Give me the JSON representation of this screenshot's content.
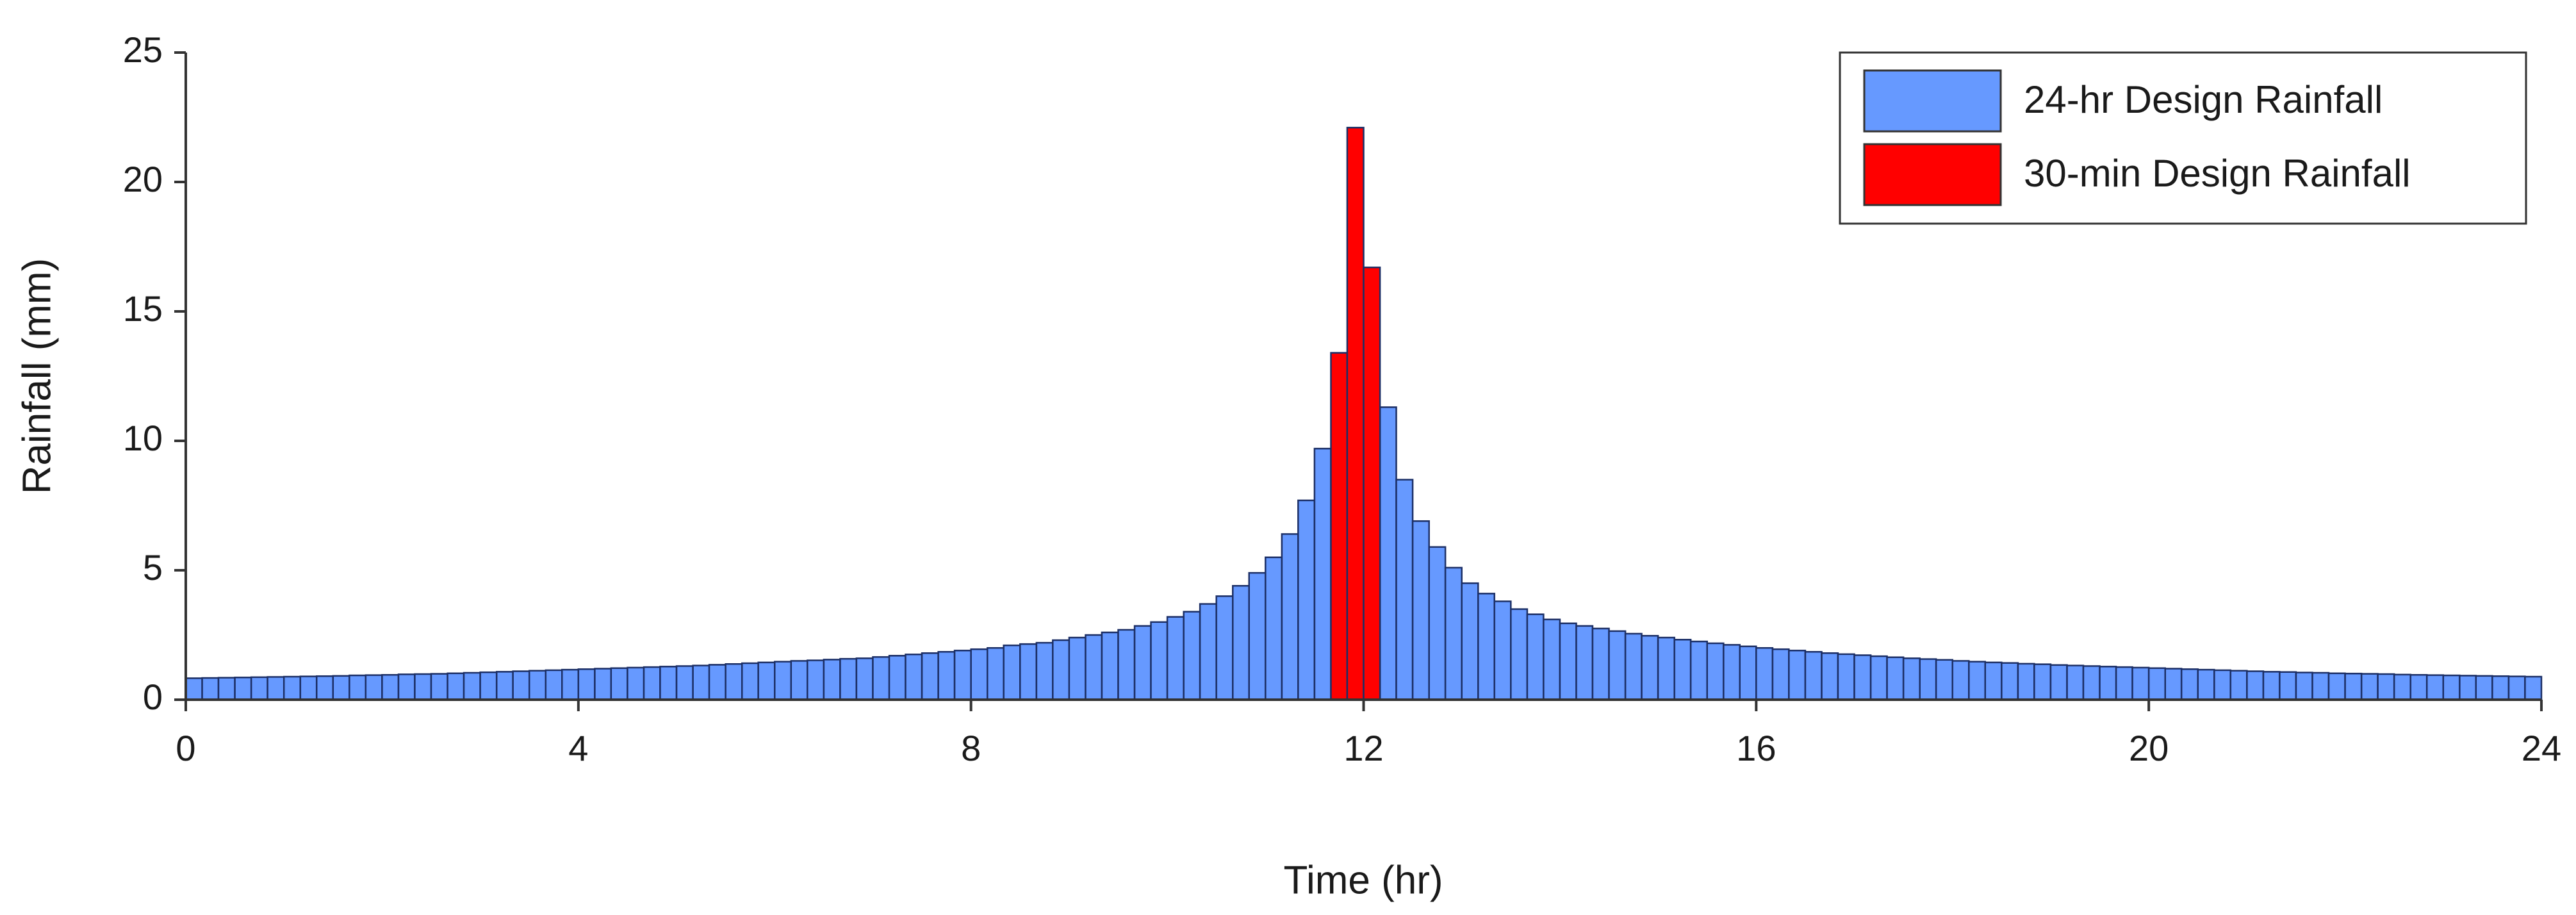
{
  "chart_data": {
    "type": "histogram",
    "xlabel": "Time (hr)",
    "ylabel": "Rainfall (mm)",
    "xlim": [
      0,
      24
    ],
    "ylim": [
      0,
      25
    ],
    "xticks": [
      0,
      4,
      8,
      12,
      16,
      20,
      24
    ],
    "yticks": [
      0,
      5,
      10,
      15,
      20,
      25
    ],
    "legend": "upper right",
    "bins": [
      0,
      0.167,
      0.333,
      0.5,
      0.667,
      0.833,
      1,
      1.167,
      1.333,
      1.5,
      1.667,
      1.833,
      2,
      2.167,
      2.333,
      2.5,
      2.667,
      2.833,
      3,
      3.167,
      3.333,
      3.5,
      3.667,
      3.833,
      4,
      4.167,
      4.333,
      4.5,
      4.667,
      4.833,
      5,
      5.167,
      5.333,
      5.5,
      5.667,
      5.833,
      6,
      6.167,
      6.333,
      6.5,
      6.667,
      6.833,
      7,
      7.167,
      7.333,
      7.5,
      7.667,
      7.833,
      8,
      8.167,
      8.333,
      8.5,
      8.667,
      8.833,
      9,
      9.167,
      9.333,
      9.5,
      9.667,
      9.833,
      10,
      10.167,
      10.333,
      10.5,
      10.667,
      10.833,
      11,
      11.167,
      11.333,
      11.5,
      11.667,
      11.833,
      12,
      12.167,
      12.333,
      12.5,
      12.667,
      12.833,
      13,
      13.167,
      13.333,
      13.5,
      13.667,
      13.833,
      14,
      14.167,
      14.333,
      14.5,
      14.667,
      14.833,
      15,
      15.167,
      15.333,
      15.5,
      15.667,
      15.833,
      16,
      16.167,
      16.333,
      16.5,
      16.667,
      16.833,
      17,
      17.167,
      17.333,
      17.5,
      17.667,
      17.833,
      18,
      18.167,
      18.333,
      18.5,
      18.667,
      18.833,
      19,
      19.167,
      19.333,
      19.5,
      19.667,
      19.833,
      20,
      20.167,
      20.333,
      20.5,
      20.667,
      20.833,
      21,
      21.167,
      21.333,
      21.5,
      21.667,
      21.833,
      22,
      22.167,
      22.333,
      22.5,
      22.667,
      22.833,
      23,
      23.167,
      23.333,
      23.5,
      23.667,
      23.833,
      24
    ],
    "series": [
      {
        "name": "24-hr Design Rainfall",
        "color": "#6699ff",
        "values": [
          0.83,
          0.84,
          0.85,
          0.86,
          0.87,
          0.88,
          0.89,
          0.9,
          0.91,
          0.92,
          0.94,
          0.95,
          0.96,
          0.98,
          0.99,
          1.0,
          1.02,
          1.04,
          1.06,
          1.08,
          1.1,
          1.12,
          1.14,
          1.16,
          1.18,
          1.2,
          1.22,
          1.24,
          1.26,
          1.28,
          1.3,
          1.32,
          1.35,
          1.38,
          1.41,
          1.44,
          1.47,
          1.5,
          1.52,
          1.55,
          1.58,
          1.6,
          1.65,
          1.7,
          1.75,
          1.8,
          1.85,
          1.9,
          1.95,
          2.0,
          2.1,
          2.15,
          2.2,
          2.3,
          2.4,
          2.5,
          2.6,
          2.7,
          2.85,
          3.0,
          3.2,
          3.4,
          3.7,
          4.0,
          4.4,
          4.9,
          5.5,
          6.4,
          7.7,
          9.7,
          null,
          null,
          null,
          11.3,
          8.5,
          6.9,
          5.9,
          5.1,
          4.5,
          4.1,
          3.8,
          3.5,
          3.3,
          3.1,
          2.95,
          2.85,
          2.75,
          2.65,
          2.55,
          2.47,
          2.4,
          2.32,
          2.25,
          2.18,
          2.12,
          2.06,
          2.0,
          1.95,
          1.9,
          1.85,
          1.8,
          1.76,
          1.72,
          1.68,
          1.64,
          1.6,
          1.57,
          1.54,
          1.5,
          1.47,
          1.44,
          1.42,
          1.39,
          1.37,
          1.34,
          1.32,
          1.3,
          1.28,
          1.26,
          1.24,
          1.22,
          1.2,
          1.18,
          1.16,
          1.14,
          1.12,
          1.1,
          1.08,
          1.07,
          1.05,
          1.04,
          1.02,
          1.01,
          1.0,
          0.99,
          0.97,
          0.96,
          0.95,
          0.94,
          0.93,
          0.92,
          0.91,
          0.9,
          0.89
        ]
      },
      {
        "name": "30-min Design Rainfall",
        "color": "#ff0000",
        "values": [
          null,
          null,
          null,
          null,
          null,
          null,
          null,
          null,
          null,
          null,
          null,
          null,
          null,
          null,
          null,
          null,
          null,
          null,
          null,
          null,
          null,
          null,
          null,
          null,
          null,
          null,
          null,
          null,
          null,
          null,
          null,
          null,
          null,
          null,
          null,
          null,
          null,
          null,
          null,
          null,
          null,
          null,
          null,
          null,
          null,
          null,
          null,
          null,
          null,
          null,
          null,
          null,
          null,
          null,
          null,
          null,
          null,
          null,
          null,
          null,
          null,
          null,
          null,
          null,
          null,
          null,
          null,
          null,
          null,
          null,
          13.4,
          22.1,
          16.7,
          null,
          null,
          null,
          null,
          null,
          null,
          null,
          null,
          null,
          null,
          null,
          null,
          null,
          null,
          null,
          null,
          null,
          null,
          null,
          null,
          null,
          null,
          null,
          null,
          null,
          null,
          null,
          null,
          null,
          null,
          null,
          null,
          null,
          null,
          null,
          null,
          null,
          null,
          null,
          null,
          null,
          null,
          null,
          null,
          null,
          null,
          null,
          null,
          null,
          null,
          null,
          null,
          null,
          null,
          null,
          null,
          null,
          null,
          null,
          null,
          null,
          null,
          null,
          null,
          null,
          null,
          null,
          null,
          null,
          null,
          null
        ]
      }
    ]
  }
}
